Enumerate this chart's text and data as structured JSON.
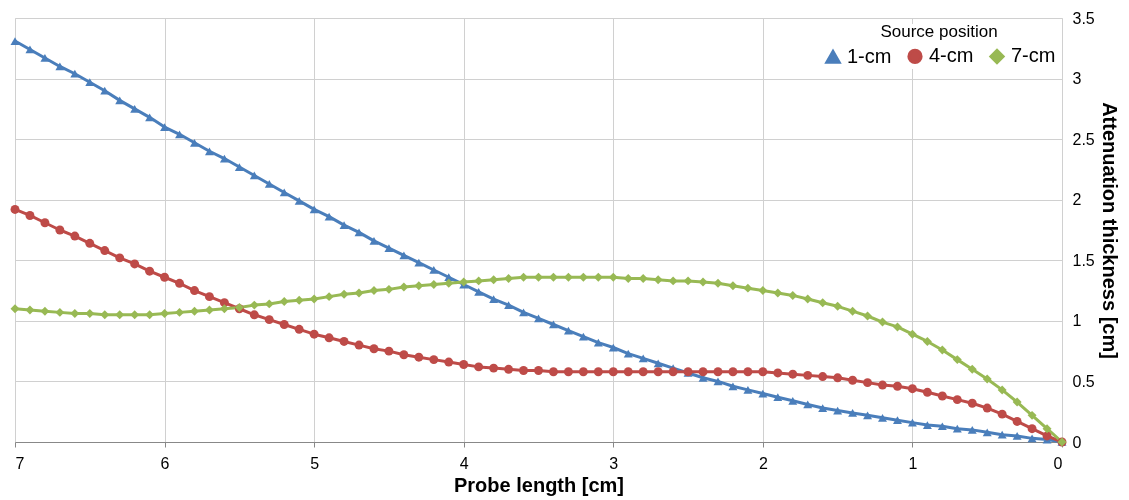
{
  "chart_data": {
    "type": "line",
    "xlabel": "Probe length [cm]",
    "ylabel": "Attenuation thickness [cm]",
    "legend_title": "Source position",
    "legend": "top right",
    "grid": true,
    "line_style": "solid",
    "xlim": [
      7,
      0
    ],
    "xticks": [
      7,
      6,
      5,
      4,
      3,
      2,
      1,
      0
    ],
    "ylim": [
      0,
      3.5
    ],
    "yticks": [
      0,
      0.5,
      1,
      1.5,
      2,
      2.5,
      3,
      3.5
    ],
    "x": [
      7.0,
      6.9,
      6.8,
      6.7,
      6.6,
      6.5,
      6.4,
      6.3,
      6.2,
      6.1,
      6.0,
      5.9,
      5.8,
      5.7,
      5.6,
      5.5,
      5.4,
      5.3,
      5.2,
      5.1,
      5.0,
      4.9,
      4.8,
      4.7,
      4.6,
      4.5,
      4.4,
      4.3,
      4.2,
      4.1,
      4.0,
      3.9,
      3.8,
      3.7,
      3.6,
      3.5,
      3.4,
      3.3,
      3.2,
      3.1,
      3.0,
      2.9,
      2.8,
      2.7,
      2.6,
      2.5,
      2.4,
      2.3,
      2.2,
      2.1,
      2.0,
      1.9,
      1.8,
      1.7,
      1.6,
      1.5,
      1.4,
      1.3,
      1.2,
      1.1,
      1.0,
      0.9,
      0.8,
      0.7,
      0.6,
      0.5,
      0.4,
      0.3,
      0.2,
      0.1,
      0.0
    ],
    "series": [
      {
        "name": "1-cm",
        "color": "#4a7ebb",
        "marker": "triangle",
        "values": [
          3.31,
          3.24,
          3.17,
          3.1,
          3.04,
          2.97,
          2.9,
          2.82,
          2.75,
          2.68,
          2.6,
          2.54,
          2.47,
          2.4,
          2.34,
          2.27,
          2.2,
          2.13,
          2.06,
          1.99,
          1.92,
          1.86,
          1.79,
          1.73,
          1.66,
          1.6,
          1.54,
          1.48,
          1.42,
          1.36,
          1.3,
          1.24,
          1.18,
          1.13,
          1.07,
          1.02,
          0.97,
          0.92,
          0.87,
          0.82,
          0.78,
          0.73,
          0.69,
          0.65,
          0.61,
          0.57,
          0.53,
          0.5,
          0.46,
          0.43,
          0.4,
          0.37,
          0.34,
          0.31,
          0.28,
          0.26,
          0.24,
          0.22,
          0.2,
          0.18,
          0.16,
          0.14,
          0.13,
          0.11,
          0.1,
          0.08,
          0.06,
          0.05,
          0.03,
          0.02,
          0.0
        ]
      },
      {
        "name": "4-cm",
        "color": "#be4b48",
        "marker": "circle",
        "values": [
          1.92,
          1.87,
          1.81,
          1.75,
          1.7,
          1.64,
          1.58,
          1.52,
          1.47,
          1.41,
          1.36,
          1.31,
          1.25,
          1.2,
          1.15,
          1.1,
          1.05,
          1.01,
          0.97,
          0.93,
          0.89,
          0.86,
          0.83,
          0.8,
          0.77,
          0.75,
          0.72,
          0.7,
          0.68,
          0.66,
          0.64,
          0.62,
          0.61,
          0.6,
          0.59,
          0.59,
          0.58,
          0.58,
          0.58,
          0.58,
          0.58,
          0.58,
          0.58,
          0.58,
          0.58,
          0.58,
          0.58,
          0.58,
          0.58,
          0.58,
          0.58,
          0.57,
          0.56,
          0.55,
          0.54,
          0.53,
          0.51,
          0.49,
          0.47,
          0.46,
          0.44,
          0.41,
          0.38,
          0.35,
          0.32,
          0.28,
          0.23,
          0.17,
          0.11,
          0.05,
          0.0
        ]
      },
      {
        "name": "7-cm",
        "color": "#98b954",
        "marker": "diamond",
        "values": [
          1.1,
          1.09,
          1.08,
          1.07,
          1.06,
          1.06,
          1.05,
          1.05,
          1.05,
          1.05,
          1.06,
          1.07,
          1.08,
          1.09,
          1.1,
          1.11,
          1.13,
          1.14,
          1.16,
          1.17,
          1.18,
          1.2,
          1.22,
          1.23,
          1.25,
          1.26,
          1.28,
          1.29,
          1.3,
          1.31,
          1.32,
          1.33,
          1.34,
          1.35,
          1.36,
          1.36,
          1.36,
          1.36,
          1.36,
          1.36,
          1.36,
          1.35,
          1.35,
          1.34,
          1.33,
          1.33,
          1.32,
          1.31,
          1.29,
          1.27,
          1.25,
          1.23,
          1.21,
          1.18,
          1.15,
          1.12,
          1.08,
          1.04,
          0.99,
          0.95,
          0.89,
          0.83,
          0.76,
          0.68,
          0.6,
          0.52,
          0.43,
          0.33,
          0.22,
          0.11,
          0.0
        ]
      }
    ]
  }
}
